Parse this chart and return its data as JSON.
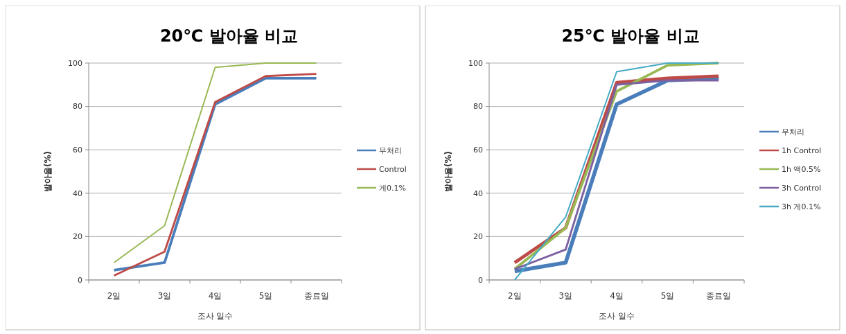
{
  "chart_data": [
    {
      "type": "line",
      "title": "20℃ 발아율 비교",
      "xlabel": "조사 일수",
      "ylabel": "발아율(%)",
      "categories": [
        "2일",
        "3일",
        "4일",
        "5일",
        "종료일"
      ],
      "ylim": [
        0,
        100
      ],
      "yticks": [
        0,
        20,
        40,
        60,
        80,
        100
      ],
      "grid": "y",
      "legend": "right",
      "series": [
        {
          "name": "무처리",
          "color": "#4a7ebb",
          "values": [
            4.5,
            8,
            81,
            93,
            93
          ]
        },
        {
          "name": "Control",
          "color": "#be4b48",
          "values": [
            2,
            13,
            82,
            94,
            95
          ]
        },
        {
          "name": "게0.1%",
          "color": "#98b954",
          "values": [
            8,
            25,
            98,
            100,
            100
          ]
        }
      ]
    },
    {
      "type": "line",
      "title": "25℃ 발아율 비교",
      "xlabel": "조사 일수",
      "ylabel": "발아율(%)",
      "categories": [
        "2일",
        "3일",
        "4일",
        "5일",
        "종료일"
      ],
      "ylim": [
        0,
        100
      ],
      "yticks": [
        0,
        20,
        40,
        60,
        80,
        100
      ],
      "grid": "y",
      "legend": "right",
      "series": [
        {
          "name": "무처리",
          "color": "#4a7ebb",
          "values": [
            4,
            8,
            81,
            92,
            93
          ]
        },
        {
          "name": "1h Control",
          "color": "#be4b48",
          "values": [
            8,
            24,
            91,
            93,
            94
          ]
        },
        {
          "name": "1h 액0.5%",
          "color": "#98b954",
          "values": [
            5,
            24,
            87,
            99,
            100
          ]
        },
        {
          "name": "3h Control",
          "color": "#7d60a0",
          "values": [
            5,
            14,
            90,
            92,
            92
          ]
        },
        {
          "name": "3h 게0.1%",
          "color": "#46aac5",
          "values": [
            0,
            29,
            96,
            100,
            100
          ]
        }
      ]
    }
  ]
}
